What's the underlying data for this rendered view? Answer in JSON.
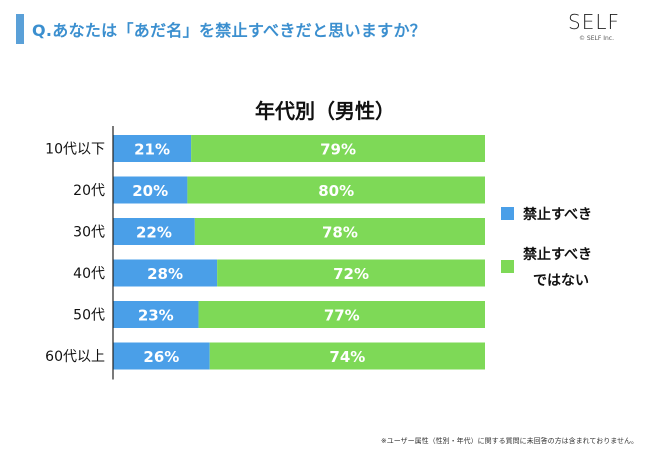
{
  "question": "Q.あなたは「あだ名」を禁止すべきだと思いますか？",
  "logo": {
    "name": "SELF",
    "copyright": "© SELF Inc."
  },
  "footnote": "※ユーザー属性（性別・年代）に関する質問に未回答の方は含まれておりません。",
  "colors": {
    "accent": "#3b8fcf",
    "forbid": "#4a9fe8",
    "not_forbid": "#7ed957"
  },
  "chart_data": {
    "type": "bar",
    "orientation": "horizontal",
    "stacked": true,
    "normalized_100": true,
    "title": "年代別（男性）",
    "categories": [
      "10代以下",
      "20代",
      "30代",
      "40代",
      "50代",
      "60代以上"
    ],
    "series": [
      {
        "name": "禁止すべき",
        "values": [
          21,
          20,
          22,
          28,
          23,
          26
        ],
        "labels": [
          "21%",
          "20%",
          "22%",
          "28%",
          "23%",
          "26%"
        ],
        "color": "#4a9fe8"
      },
      {
        "name": "禁止すべきではない",
        "legend_lines": [
          "禁止すべき",
          "ではない"
        ],
        "values": [
          79,
          80,
          78,
          72,
          77,
          74
        ],
        "labels": [
          "79%",
          "80%",
          "78%",
          "72%",
          "77%",
          "74%"
        ],
        "color": "#7ed957"
      }
    ],
    "xlim": [
      0,
      100
    ],
    "legend_position": "right"
  }
}
